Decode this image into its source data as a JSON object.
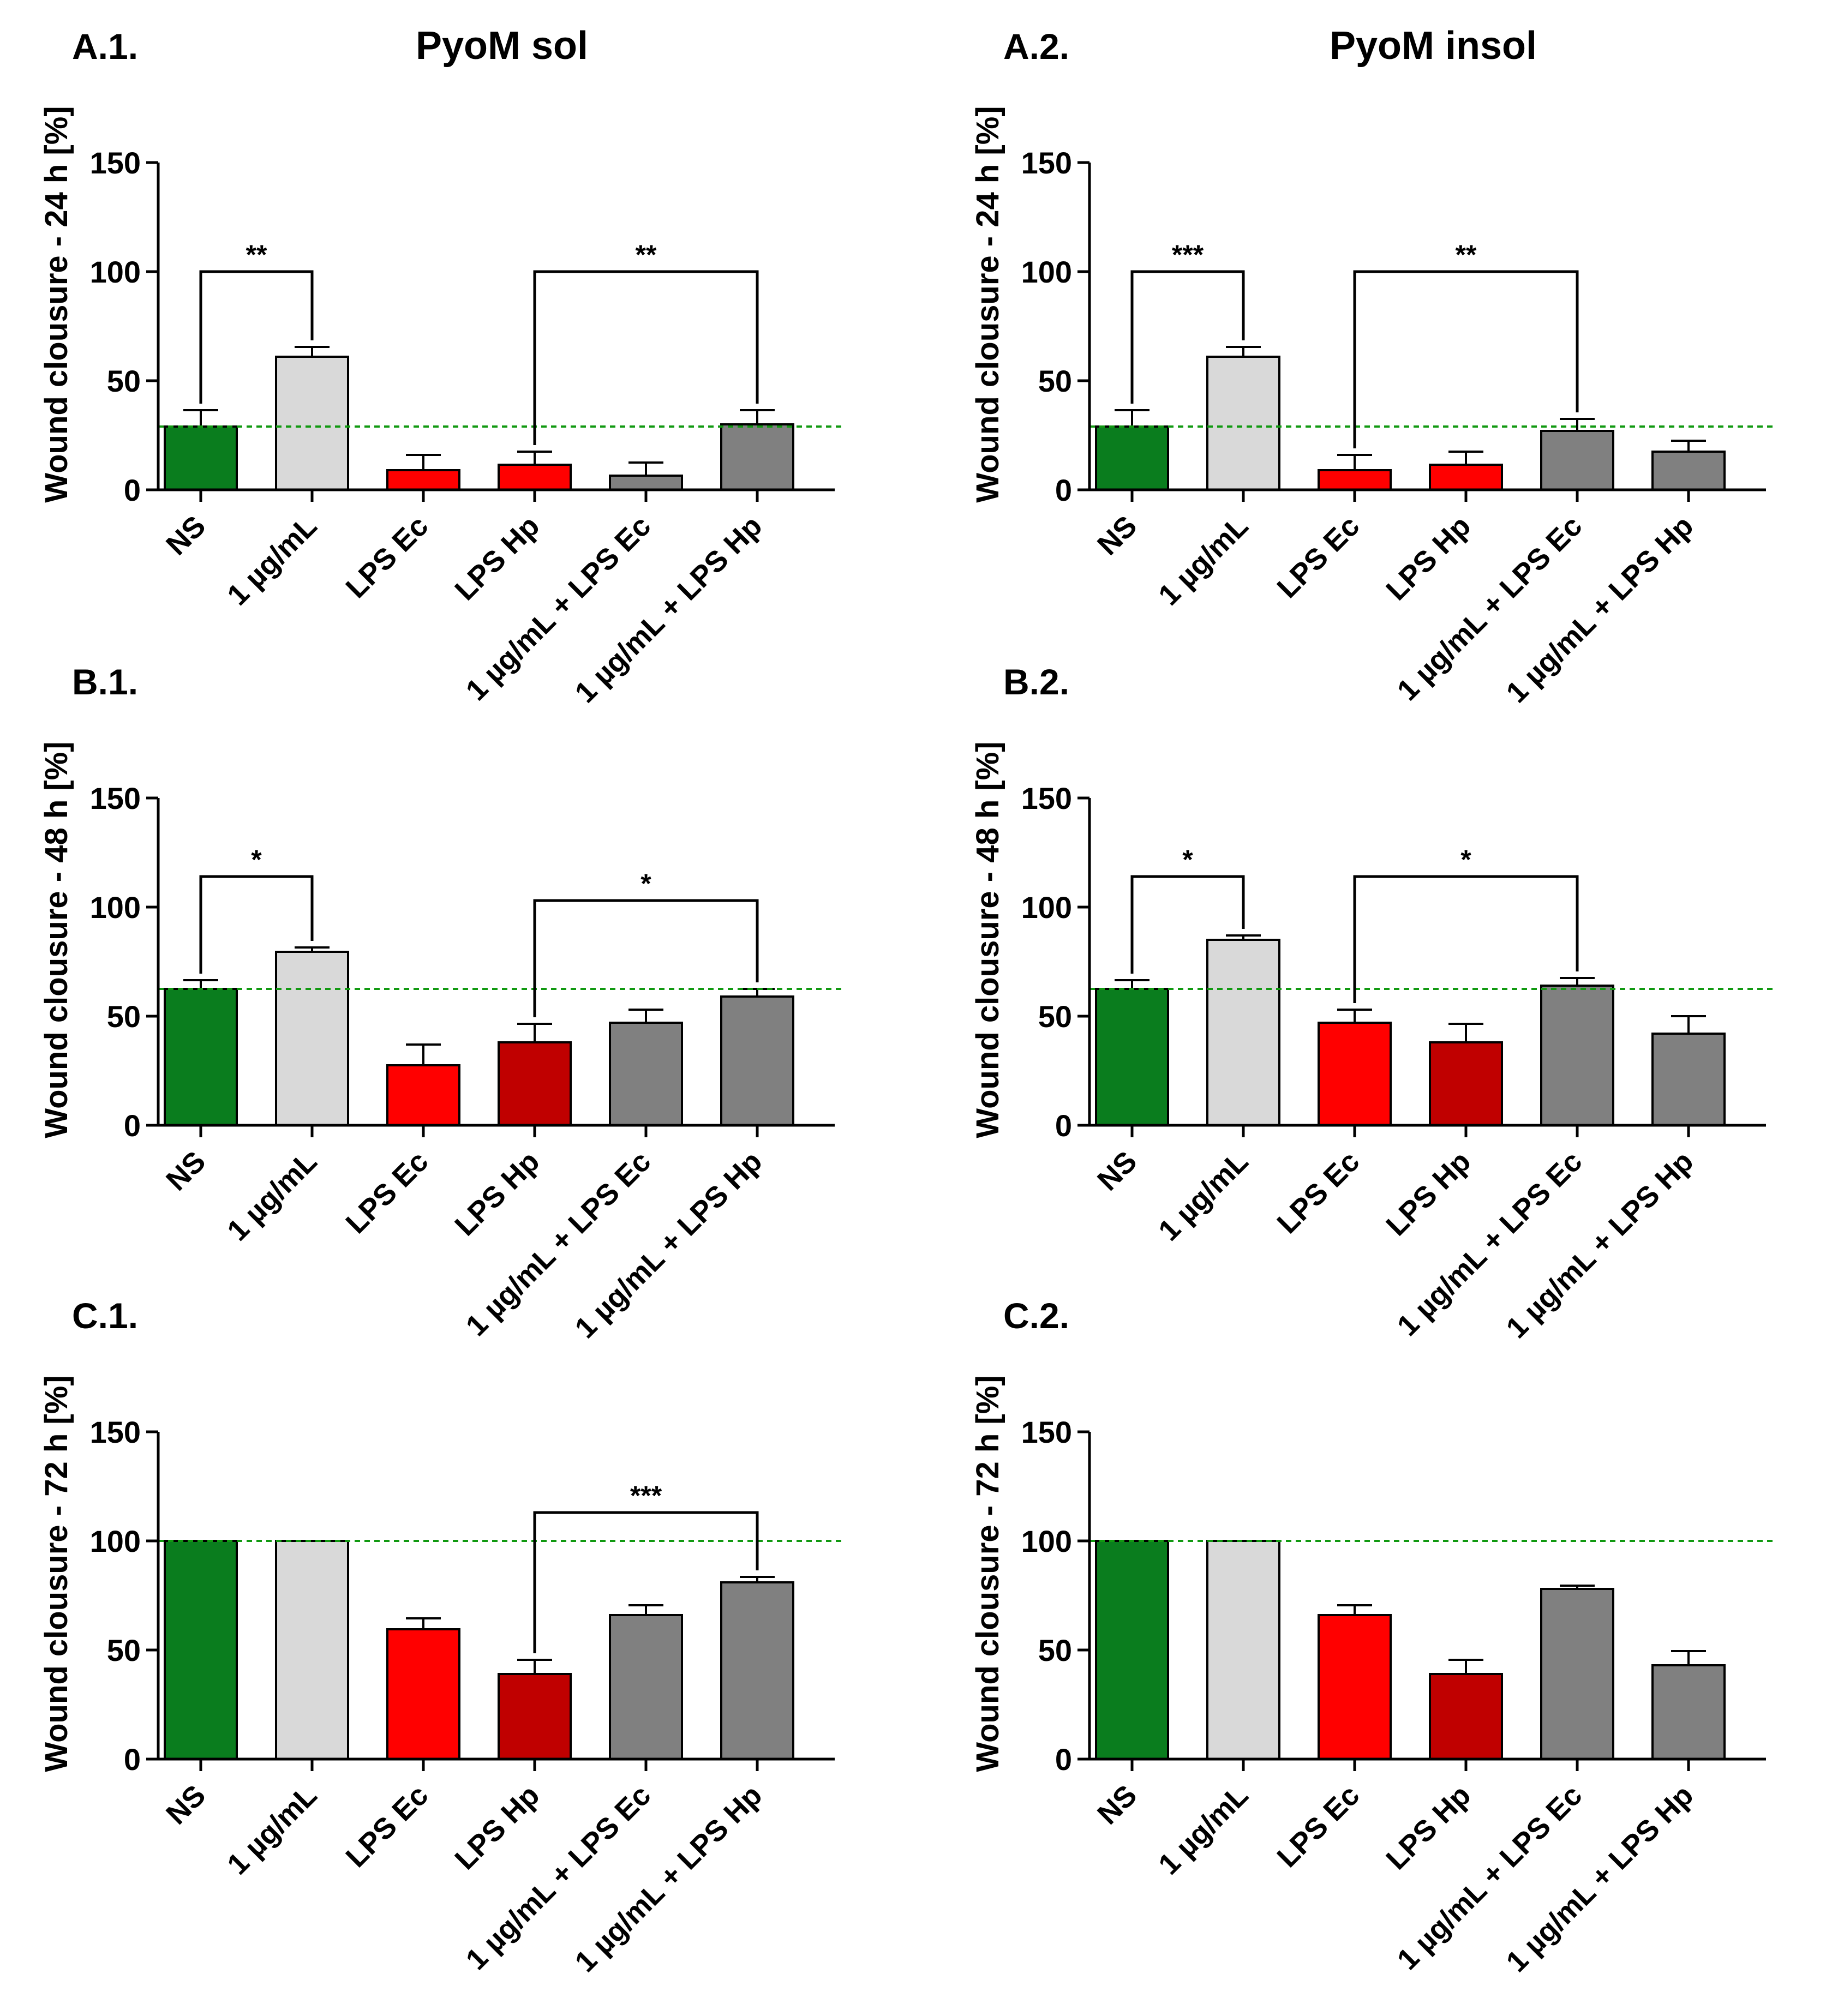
{
  "colors": {
    "ns": "#0a7d1e",
    "pyom": "#d9d9d9",
    "lps_ec": "#ff0000",
    "lps_hp": "#c00000",
    "combo": "#808080",
    "reference_line": "#119911",
    "axis": "#000000"
  },
  "chart_data": [
    {
      "type": "bar",
      "panel": "A.1.",
      "title": "PyoM sol",
      "ylabel": "Wound clousure - 24 h [%]",
      "xlabel": "",
      "ylim": [
        0,
        150
      ],
      "yticks": [
        0,
        50,
        100,
        150
      ],
      "categories": [
        "NS",
        "1 µg/mL",
        "LPS Ec",
        "LPS Hp",
        "1 µg/mL + LPS Ec",
        "1 µg/mL + LPS Hp"
      ],
      "colors": [
        "#0a7d1e",
        "#d9d9d9",
        "#ff0000",
        "#ff0000",
        "#808080",
        "#808080"
      ],
      "values": [
        29,
        61,
        9,
        11.5,
        6.5,
        30
      ],
      "errors": [
        7.5,
        4.5,
        7,
        6,
        6,
        6.5
      ],
      "reference_line": 29,
      "significance": [
        {
          "from": 0,
          "to": 1,
          "label": "**",
          "level": 100
        },
        {
          "from": 3,
          "to": 5,
          "label": "**",
          "level": 100
        }
      ]
    },
    {
      "type": "bar",
      "panel": "A.2.",
      "title": "PyoM insol",
      "ylabel": "Wound clousure - 24 h [%]",
      "xlabel": "",
      "ylim": [
        0,
        150
      ],
      "yticks": [
        0,
        50,
        100,
        150
      ],
      "categories": [
        "NS",
        "1 µg/mL",
        "LPS Ec",
        "LPS Hp",
        "1 µg/mL + LPS Ec",
        "1 µg/mL + LPS Hp"
      ],
      "colors": [
        "#0a7d1e",
        "#d9d9d9",
        "#ff0000",
        "#ff0000",
        "#808080",
        "#808080"
      ],
      "values": [
        29,
        61,
        9,
        11.5,
        27,
        17.5
      ],
      "errors": [
        7.5,
        4.5,
        7,
        6,
        5.5,
        5
      ],
      "reference_line": 29,
      "significance": [
        {
          "from": 0,
          "to": 1,
          "label": "***",
          "level": 100
        },
        {
          "from": 2,
          "to": 4,
          "label": "**",
          "level": 100
        }
      ]
    },
    {
      "type": "bar",
      "panel": "B.1.",
      "title": "",
      "ylabel": "Wound clousure - 48 h [%]",
      "xlabel": "",
      "ylim": [
        0,
        150
      ],
      "yticks": [
        0,
        50,
        100,
        150
      ],
      "categories": [
        "NS",
        "1 µg/mL",
        "LPS Ec",
        "LPS Hp",
        "1 µg/mL + LPS Ec",
        "1 µg/mL + LPS Hp"
      ],
      "colors": [
        "#0a7d1e",
        "#d9d9d9",
        "#ff0000",
        "#c00000",
        "#808080",
        "#808080"
      ],
      "values": [
        62.5,
        79.5,
        27.5,
        38,
        47,
        59
      ],
      "errors": [
        4,
        2,
        9.5,
        8.5,
        6,
        3.5
      ],
      "reference_line": 62.5,
      "significance": [
        {
          "from": 0,
          "to": 1,
          "label": "*",
          "level": 114
        },
        {
          "from": 3,
          "to": 5,
          "label": "*",
          "level": 103
        }
      ]
    },
    {
      "type": "bar",
      "panel": "B.2.",
      "title": "",
      "ylabel": "Wound clousure - 48 h [%]",
      "xlabel": "",
      "ylim": [
        0,
        150
      ],
      "yticks": [
        0,
        50,
        100,
        150
      ],
      "categories": [
        "NS",
        "1 µg/mL",
        "LPS Ec",
        "LPS Hp",
        "1 µg/mL + LPS Ec",
        "1 µg/mL + LPS Hp"
      ],
      "colors": [
        "#0a7d1e",
        "#d9d9d9",
        "#ff0000",
        "#c00000",
        "#808080",
        "#808080"
      ],
      "values": [
        62.5,
        85,
        47,
        38,
        64,
        42
      ],
      "errors": [
        4,
        2,
        6,
        8.5,
        3.5,
        8
      ],
      "reference_line": 62.5,
      "significance": [
        {
          "from": 0,
          "to": 1,
          "label": "*",
          "level": 114
        },
        {
          "from": 2,
          "to": 4,
          "label": "*",
          "level": 114
        }
      ]
    },
    {
      "type": "bar",
      "panel": "C.1.",
      "title": "",
      "ylabel": "Wound clousure - 72 h [%]",
      "xlabel": "",
      "ylim": [
        0,
        150
      ],
      "yticks": [
        0,
        50,
        100,
        150
      ],
      "categories": [
        "NS",
        "1 µg/mL",
        "LPS Ec",
        "LPS Hp",
        "1 µg/mL + LPS Ec",
        "1 µg/mL + LPS Hp"
      ],
      "colors": [
        "#0a7d1e",
        "#d9d9d9",
        "#ff0000",
        "#c00000",
        "#808080",
        "#808080"
      ],
      "values": [
        100,
        100,
        59.5,
        39,
        66,
        81
      ],
      "errors": [
        0,
        0,
        5,
        6.5,
        4.5,
        2.5
      ],
      "reference_line": 100,
      "significance": [
        {
          "from": 3,
          "to": 5,
          "label": "***",
          "level": 113
        }
      ]
    },
    {
      "type": "bar",
      "panel": "C.2.",
      "title": "",
      "ylabel": "Wound clousure - 72 h [%]",
      "xlabel": "",
      "ylim": [
        0,
        150
      ],
      "yticks": [
        0,
        50,
        100,
        150
      ],
      "categories": [
        "NS",
        "1 µg/mL",
        "LPS Ec",
        "LPS Hp",
        "1 µg/mL + LPS Ec",
        "1 µg/mL + LPS Hp"
      ],
      "colors": [
        "#0a7d1e",
        "#d9d9d9",
        "#ff0000",
        "#c00000",
        "#808080",
        "#808080"
      ],
      "values": [
        100,
        100,
        66,
        39,
        78,
        43
      ],
      "errors": [
        0,
        0,
        4.5,
        6.5,
        1.5,
        6.5
      ],
      "reference_line": 100,
      "significance": []
    }
  ]
}
